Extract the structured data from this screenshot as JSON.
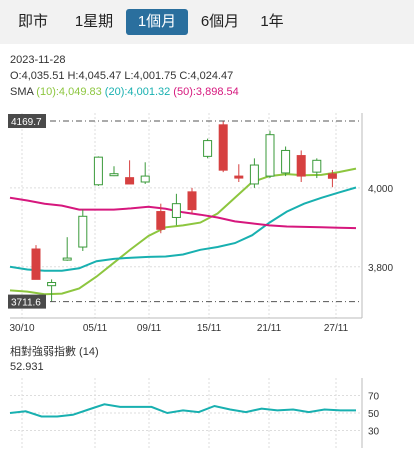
{
  "tabs": [
    {
      "label": "即市",
      "active": false
    },
    {
      "label": "1星期",
      "active": false
    },
    {
      "label": "1個月",
      "active": true
    },
    {
      "label": "6個月",
      "active": false
    },
    {
      "label": "1年",
      "active": false
    }
  ],
  "info": {
    "date": "2023-11-28",
    "ohlc": "O:4,035.51  H:4,045.47  L:4,001.75  C:4,024.47",
    "sma_label": "SMA",
    "sma10": "(10):4,049.83",
    "sma20": "(20):4,001.32",
    "sma50": "(50):3,898.54"
  },
  "colors": {
    "up": "#3a9a3a",
    "down": "#d64040",
    "sma10": "#8dc63f",
    "sma20": "#18b0b0",
    "sma50": "#d6177d",
    "rsi": "#18b0b0",
    "active_tab": "#2a6f9e"
  },
  "chart_data": [
    {
      "type": "candlestick",
      "x_labels": [
        "30/10",
        "05/11",
        "09/11",
        "15/11",
        "21/11",
        "27/11"
      ],
      "y_ticks": [
        3800,
        4000
      ],
      "y_tick_labels": [
        "3,800",
        "4,000"
      ],
      "ylim": [
        3670,
        4190
      ],
      "high_marker": {
        "label": "4169.7",
        "value": 4169.7
      },
      "low_marker": {
        "label": "3711.6",
        "value": 3711.6
      },
      "candles": [
        {
          "o": 3845,
          "h": 3855,
          "l": 3768,
          "c": 3768
        },
        {
          "o": 3752,
          "h": 3768,
          "l": 3711.6,
          "c": 3760
        },
        {
          "o": 3822,
          "h": 3875,
          "l": 3815,
          "c": 3822
        },
        {
          "o": 3850,
          "h": 3945,
          "l": 3840,
          "c": 3928
        },
        {
          "o": 4008,
          "h": 4080,
          "l": 4005,
          "c": 4078
        },
        {
          "o": 4036,
          "h": 4055,
          "l": 4030,
          "c": 4036
        },
        {
          "o": 4026,
          "h": 4070,
          "l": 4010,
          "c": 4010
        },
        {
          "o": 4015,
          "h": 4065,
          "l": 4010,
          "c": 4030
        },
        {
          "o": 3940,
          "h": 3960,
          "l": 3885,
          "c": 3895
        },
        {
          "o": 3925,
          "h": 3985,
          "l": 3905,
          "c": 3960
        },
        {
          "o": 3990,
          "h": 4000,
          "l": 3935,
          "c": 3945
        },
        {
          "o": 4080,
          "h": 4125,
          "l": 4075,
          "c": 4120
        },
        {
          "o": 4160,
          "h": 4169.7,
          "l": 4040,
          "c": 4045
        },
        {
          "o": 4030,
          "h": 4060,
          "l": 4015,
          "c": 4028
        },
        {
          "o": 4010,
          "h": 4075,
          "l": 4000,
          "c": 4058
        },
        {
          "o": 4030,
          "h": 4145,
          "l": 4025,
          "c": 4135
        },
        {
          "o": 4038,
          "h": 4105,
          "l": 4030,
          "c": 4095
        },
        {
          "o": 4082,
          "h": 4095,
          "l": 4015,
          "c": 4030
        },
        {
          "o": 4040,
          "h": 4075,
          "l": 4025,
          "c": 4070
        },
        {
          "o": 4035.51,
          "h": 4045.47,
          "l": 4001.75,
          "c": 4024.47
        }
      ],
      "series": [
        {
          "name": "(10)",
          "values": [
            3740,
            3737,
            3730,
            3732,
            3745,
            3775,
            3810,
            3845,
            3878,
            3900,
            3905,
            3912,
            3935,
            3975,
            4015,
            4030,
            4035,
            4032,
            4033,
            4040,
            4049
          ]
        },
        {
          "name": "(20)",
          "values": [
            3800,
            3793,
            3790,
            3790,
            3796,
            3814,
            3820,
            3823,
            3825,
            3826,
            3831,
            3843,
            3850,
            3860,
            3880,
            3912,
            3940,
            3960,
            3975,
            3988,
            4001
          ]
        },
        {
          "name": "(50)",
          "values": [
            3975,
            3968,
            3960,
            3955,
            3945,
            3945,
            3945,
            3948,
            3952,
            3947,
            3938,
            3932,
            3925,
            3915,
            3910,
            3905,
            3902,
            3901,
            3900,
            3899,
            3898
          ]
        }
      ]
    },
    {
      "type": "line",
      "title": "相對強弱指數 (14)",
      "value_label": "52.931",
      "y_ticks": [
        70,
        50,
        30
      ],
      "ylim": [
        10,
        90
      ],
      "series": [
        {
          "values": [
            50,
            52,
            46,
            46,
            48,
            54,
            60,
            57,
            57,
            57,
            50,
            53,
            51,
            58,
            54,
            51,
            55,
            53,
            54,
            51,
            54,
            53,
            53
          ]
        }
      ]
    }
  ]
}
